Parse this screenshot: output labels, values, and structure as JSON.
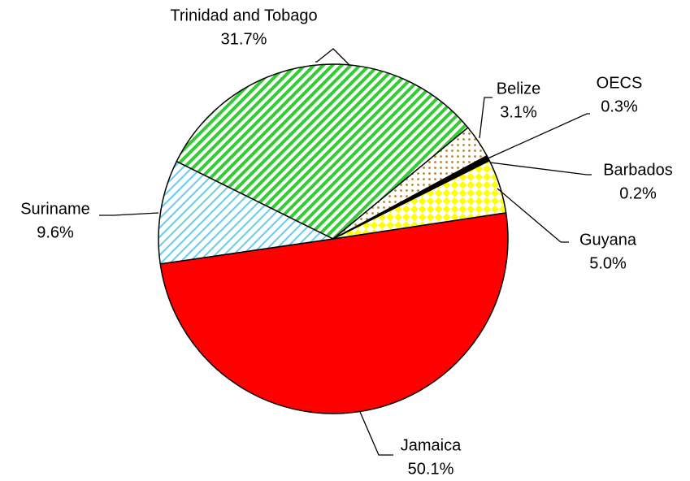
{
  "chart_data": {
    "type": "pie",
    "categories": [
      "Jamaica",
      "Suriname",
      "Trinidad and Tobago",
      "Belize",
      "OECS",
      "Barbados",
      "Guyana"
    ],
    "values": [
      50.1,
      9.6,
      31.7,
      3.1,
      0.3,
      0.2,
      5.0
    ],
    "value_labels": [
      "50.1%",
      "9.6%",
      "31.7%",
      "3.1%",
      "0.3%",
      "0.2%",
      "5.0%"
    ],
    "colors": [
      "#ff0000",
      "#66ccee",
      "#33cc33",
      "#b8862b",
      "#000000",
      "#000000",
      "#ffff00"
    ]
  }
}
